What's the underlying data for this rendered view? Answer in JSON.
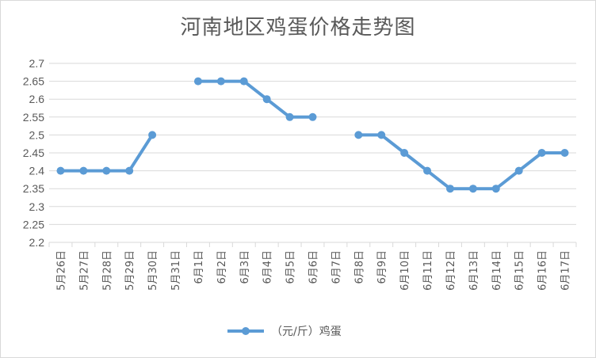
{
  "chart_data": {
    "type": "line",
    "title": "河南地区鸡蛋价格走势图",
    "xlabel": "",
    "ylabel": "",
    "ylim": [
      2.2,
      2.7
    ],
    "y_ticks": [
      "2.2",
      "2.25",
      "2.3",
      "2.35",
      "2.4",
      "2.45",
      "2.5",
      "2.55",
      "2.6",
      "2.65",
      "2.7"
    ],
    "categories": [
      "5月26日",
      "5月27日",
      "5月28日",
      "5月29日",
      "5月30日",
      "5月31日",
      "6月1日",
      "6月2日",
      "6月3日",
      "6月4日",
      "6月5日",
      "6月6日",
      "6月7日",
      "6月8日",
      "6月9日",
      "6月10日",
      "6月11日",
      "6月12日",
      "6月13日",
      "6月14日",
      "6月15日",
      "6月16日",
      "6月17日"
    ],
    "series": [
      {
        "name": "（元/斤）鸡蛋",
        "color": "#5b9bd5",
        "values": [
          2.4,
          2.4,
          2.4,
          2.4,
          2.5,
          null,
          2.65,
          2.65,
          2.65,
          2.6,
          2.55,
          2.55,
          null,
          2.5,
          2.5,
          2.45,
          2.4,
          2.35,
          2.35,
          2.35,
          2.4,
          2.45,
          2.45
        ]
      }
    ],
    "grid": true,
    "legend": "bottom"
  },
  "colors": {
    "line": "#5b9bd5",
    "grid": "#d9d9d9",
    "text": "#595959"
  }
}
